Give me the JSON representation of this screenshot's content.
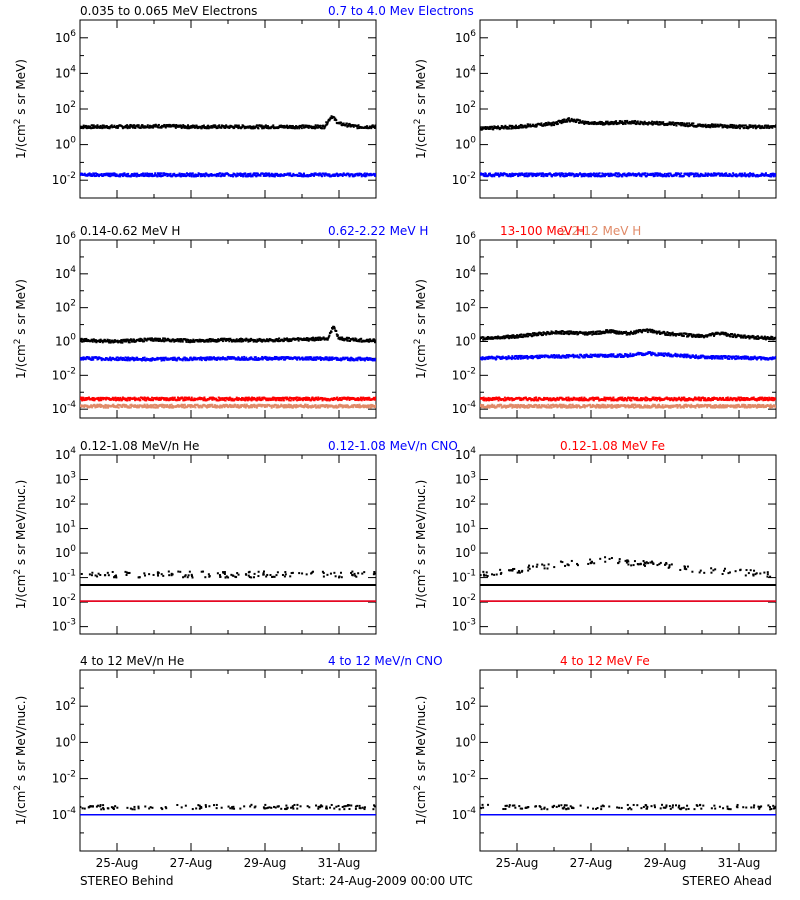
{
  "colors": {
    "black": "#000000",
    "blue": "#0000ff",
    "tan": "#e08a68",
    "red": "#ff0000"
  },
  "footer": {
    "left": "STEREO Behind",
    "center": "Start: 24-Aug-2009 00:00 UTC",
    "right": "STEREO Ahead"
  },
  "chart_data": [
    {
      "type": "scatter",
      "row": 1,
      "spacecraft": "STEREO Behind",
      "legend": [
        {
          "text": "0.035 to 0.065 MeV Electrons",
          "color": "#000000"
        },
        {
          "text": "0.7 to 4.0 Mev Electrons",
          "color": "#0000ff"
        }
      ],
      "ylabel": "1/(cm2 s sr MeV)",
      "yscale": "log",
      "ylim": [
        0.001,
        10000000
      ],
      "yticks": [
        {
          "v": 0.01,
          "label": "10^-2"
        },
        {
          "v": 1,
          "label": "10^0"
        },
        {
          "v": 100,
          "label": "10^2"
        },
        {
          "v": 10000,
          "label": "10^4"
        },
        {
          "v": 1000000,
          "label": "10^6"
        }
      ],
      "xlim": [
        0,
        8
      ],
      "x_units": "days since 24-Aug-2009 00:00 UTC",
      "x_ticks": [
        "25-Aug",
        "27-Aug",
        "29-Aug",
        "31-Aug"
      ],
      "series": [
        {
          "name": "0.035 to 0.065 MeV Electrons",
          "color": "#000000",
          "x": [
            0,
            1,
            2,
            3,
            4,
            5,
            6,
            6.6,
            6.8,
            7,
            7.5,
            8
          ],
          "y": [
            10,
            10,
            11,
            10,
            10,
            10,
            10,
            10,
            40,
            15,
            10,
            10
          ]
        },
        {
          "name": "0.7 to 4.0 Mev Electrons",
          "color": "#0000ff",
          "x": [
            0,
            2,
            4,
            6,
            8
          ],
          "y": [
            0.02,
            0.02,
            0.02,
            0.02,
            0.02
          ]
        }
      ]
    },
    {
      "type": "scatter",
      "row": 1,
      "spacecraft": "STEREO Ahead",
      "ylabel": "1/(cm2 s sr MeV)",
      "yscale": "log",
      "ylim": [
        0.001,
        10000000
      ],
      "yticks": [
        {
          "v": 0.01,
          "label": "10^-2"
        },
        {
          "v": 1,
          "label": "10^0"
        },
        {
          "v": 100,
          "label": "10^2"
        },
        {
          "v": 10000,
          "label": "10^4"
        },
        {
          "v": 1000000,
          "label": "10^6"
        }
      ],
      "xlim": [
        0,
        8
      ],
      "x_units": "days since 24-Aug-2009 00:00 UTC",
      "x_ticks": [
        "25-Aug",
        "27-Aug",
        "29-Aug",
        "31-Aug"
      ],
      "series": [
        {
          "name": "0.035 to 0.065 MeV Electrons",
          "color": "#000000",
          "x": [
            0,
            1,
            2,
            2.4,
            3,
            4,
            5,
            6,
            7,
            8
          ],
          "y": [
            8,
            10,
            15,
            25,
            15,
            18,
            15,
            12,
            10,
            10
          ]
        },
        {
          "name": "0.7 to 4.0 Mev Electrons",
          "color": "#0000ff",
          "x": [
            0,
            2,
            4,
            6,
            8
          ],
          "y": [
            0.02,
            0.02,
            0.02,
            0.02,
            0.02
          ]
        }
      ]
    },
    {
      "type": "scatter",
      "row": 2,
      "spacecraft": "STEREO Behind",
      "legend": [
        {
          "text": "0.14-0.62 MeV H",
          "color": "#000000"
        },
        {
          "text": "0.62-2.22 MeV H",
          "color": "#0000ff"
        },
        {
          "text": "2.2-12 MeV H",
          "color": "#e08a68"
        },
        {
          "text": "13-100 MeV H",
          "color": "#ff0000"
        }
      ],
      "ylabel": "1/(cm2 s sr MeV)",
      "yscale": "log",
      "ylim": [
        3e-05,
        1000000
      ],
      "yticks": [
        {
          "v": 0.0001,
          "label": "10^-4"
        },
        {
          "v": 0.01,
          "label": "10^-2"
        },
        {
          "v": 1,
          "label": "10^0"
        },
        {
          "v": 100,
          "label": "10^2"
        },
        {
          "v": 10000,
          "label": "10^4"
        },
        {
          "v": 1000000,
          "label": "10^6"
        }
      ],
      "xlim": [
        0,
        8
      ],
      "x_units": "days since 24-Aug-2009 00:00 UTC",
      "x_ticks": [
        "25-Aug",
        "27-Aug",
        "29-Aug",
        "31-Aug"
      ],
      "series": [
        {
          "name": "0.14-0.62 MeV H",
          "color": "#000000",
          "x": [
            0,
            1,
            2,
            3,
            4,
            5,
            6,
            6.7,
            6.85,
            7,
            7.5,
            8
          ],
          "y": [
            1.2,
            1,
            1.3,
            1.1,
            1.2,
            1.2,
            1.3,
            1.5,
            8,
            1.5,
            1.2,
            1.1
          ]
        },
        {
          "name": "0.62-2.22 MeV H",
          "color": "#0000ff",
          "x": [
            0,
            2,
            4,
            6,
            8
          ],
          "y": [
            0.1,
            0.09,
            0.1,
            0.1,
            0.09
          ]
        },
        {
          "name": "2.2-12 MeV H",
          "color": "#e08a68",
          "x": [
            0,
            2,
            4,
            6,
            8
          ],
          "y": [
            0.00015,
            0.00015,
            0.00015,
            0.00015,
            0.00015
          ]
        },
        {
          "name": "13-100 MeV H",
          "color": "#ff0000",
          "x": [
            0,
            2,
            4,
            6,
            8
          ],
          "y": [
            0.0004,
            0.0004,
            0.0004,
            0.0004,
            0.0004
          ]
        }
      ]
    },
    {
      "type": "scatter",
      "row": 2,
      "spacecraft": "STEREO Ahead",
      "ylabel": "1/(cm2 s sr MeV)",
      "yscale": "log",
      "ylim": [
        3e-05,
        1000000
      ],
      "yticks": [
        {
          "v": 0.0001,
          "label": "10^-4"
        },
        {
          "v": 0.01,
          "label": "10^-2"
        },
        {
          "v": 1,
          "label": "10^0"
        },
        {
          "v": 100,
          "label": "10^2"
        },
        {
          "v": 10000,
          "label": "10^4"
        },
        {
          "v": 1000000,
          "label": "10^6"
        }
      ],
      "xlim": [
        0,
        8
      ],
      "x_units": "days since 24-Aug-2009 00:00 UTC",
      "x_ticks": [
        "25-Aug",
        "27-Aug",
        "29-Aug",
        "31-Aug"
      ],
      "series": [
        {
          "name": "0.14-0.62 MeV H",
          "color": "#000000",
          "x": [
            0,
            1,
            2,
            3,
            3.5,
            4,
            4.5,
            5,
            5.5,
            6,
            6.5,
            7,
            8
          ],
          "y": [
            1.5,
            2,
            3.5,
            3,
            4,
            3,
            4.5,
            3,
            2.5,
            2,
            3,
            2,
            1.5
          ]
        },
        {
          "name": "0.62-2.22 MeV H",
          "color": "#0000ff",
          "x": [
            0,
            2,
            4,
            4.5,
            6,
            8
          ],
          "y": [
            0.1,
            0.13,
            0.15,
            0.2,
            0.12,
            0.1
          ]
        },
        {
          "name": "2.2-12 MeV H",
          "color": "#e08a68",
          "x": [
            0,
            2,
            4,
            6,
            8
          ],
          "y": [
            0.00015,
            0.00015,
            0.00015,
            0.00015,
            0.00015
          ]
        },
        {
          "name": "13-100 MeV H",
          "color": "#ff0000",
          "x": [
            0,
            2,
            4,
            6,
            8
          ],
          "y": [
            0.0004,
            0.0004,
            0.0004,
            0.0004,
            0.0004
          ]
        }
      ]
    },
    {
      "type": "scatter",
      "row": 3,
      "spacecraft": "STEREO Behind",
      "legend": [
        {
          "text": "0.12-1.08 MeV/n He",
          "color": "#000000"
        },
        {
          "text": "0.12-1.08 MeV/n CNO",
          "color": "#0000ff"
        },
        {
          "text": "0.12-1.08 MeV Fe",
          "color": "#ff0000"
        }
      ],
      "ylabel": "1/(cm2 s sr MeV/nuc.)",
      "yscale": "log",
      "ylim": [
        0.0005,
        10000
      ],
      "yticks": [
        {
          "v": 0.001,
          "label": "10^-3"
        },
        {
          "v": 0.01,
          "label": "10^-2"
        },
        {
          "v": 0.1,
          "label": "10^-1"
        },
        {
          "v": 1,
          "label": "10^0"
        },
        {
          "v": 10,
          "label": "10^1"
        },
        {
          "v": 100,
          "label": "10^2"
        },
        {
          "v": 1000,
          "label": "10^3"
        },
        {
          "v": 10000,
          "label": "10^4"
        }
      ],
      "xlim": [
        0,
        8
      ],
      "x_units": "days since 24-Aug-2009 00:00 UTC",
      "x_ticks": [
        "25-Aug",
        "27-Aug",
        "29-Aug",
        "31-Aug"
      ],
      "series": [
        {
          "name": "0.12-1.08 MeV/n He",
          "color": "#000000",
          "x": [
            0,
            2,
            4,
            6,
            8
          ],
          "y": [
            0.1,
            0.1,
            0.1,
            0.1,
            0.1
          ]
        },
        {
          "name": "0.12-1.08 MeV/n He floor",
          "color": "#000000",
          "x": [
            0,
            8
          ],
          "y": [
            0.05,
            0.05
          ]
        },
        {
          "name": "0.12-1.08 MeV/n CNO",
          "color": "#0000ff",
          "x": [
            0,
            8
          ],
          "y": [
            0.011,
            0.011
          ]
        },
        {
          "name": "0.12-1.08 MeV Fe",
          "color": "#ff0000",
          "x": [
            0,
            8
          ],
          "y": [
            0.011,
            0.011
          ]
        }
      ]
    },
    {
      "type": "scatter",
      "row": 3,
      "spacecraft": "STEREO Ahead",
      "ylabel": "1/(cm2 s sr MeV/nuc.)",
      "yscale": "log",
      "ylim": [
        0.0005,
        10000
      ],
      "yticks": [
        {
          "v": 0.001,
          "label": "10^-3"
        },
        {
          "v": 0.01,
          "label": "10^-2"
        },
        {
          "v": 0.1,
          "label": "10^-1"
        },
        {
          "v": 1,
          "label": "10^0"
        },
        {
          "v": 10,
          "label": "10^1"
        },
        {
          "v": 100,
          "label": "10^2"
        },
        {
          "v": 1000,
          "label": "10^3"
        },
        {
          "v": 10000,
          "label": "10^4"
        }
      ],
      "xlim": [
        0,
        8
      ],
      "x_units": "days since 24-Aug-2009 00:00 UTC",
      "x_ticks": [
        "25-Aug",
        "27-Aug",
        "29-Aug",
        "31-Aug"
      ],
      "series": [
        {
          "name": "0.12-1.08 MeV/n He",
          "color": "#000000",
          "x": [
            0,
            1,
            2,
            3,
            3.5,
            4,
            5,
            6,
            7,
            8
          ],
          "y": [
            0.1,
            0.15,
            0.25,
            0.35,
            0.45,
            0.3,
            0.25,
            0.15,
            0.12,
            0.1
          ]
        },
        {
          "name": "0.12-1.08 MeV/n He floor",
          "color": "#000000",
          "x": [
            0,
            8
          ],
          "y": [
            0.05,
            0.05
          ]
        },
        {
          "name": "0.12-1.08 MeV/n CNO",
          "color": "#0000ff",
          "x": [
            0,
            8
          ],
          "y": [
            0.011,
            0.011
          ]
        },
        {
          "name": "0.12-1.08 MeV Fe",
          "color": "#ff0000",
          "x": [
            0,
            8
          ],
          "y": [
            0.011,
            0.011
          ]
        }
      ]
    },
    {
      "type": "scatter",
      "row": 4,
      "spacecraft": "STEREO Behind",
      "legend": [
        {
          "text": "4 to 12 MeV/n He",
          "color": "#000000"
        },
        {
          "text": "4 to 12 MeV/n CNO",
          "color": "#0000ff"
        },
        {
          "text": "4 to 12 MeV Fe",
          "color": "#ff0000"
        }
      ],
      "ylabel": "1/(cm2 s sr MeV/nuc.)",
      "yscale": "log",
      "ylim": [
        1e-06,
        10000
      ],
      "yticks": [
        {
          "v": 0.0001,
          "label": "10^-4"
        },
        {
          "v": 0.01,
          "label": "10^-2"
        },
        {
          "v": 1,
          "label": "10^0"
        },
        {
          "v": 100,
          "label": "10^2"
        }
      ],
      "xlim": [
        0,
        8
      ],
      "x_units": "days since 24-Aug-2009 00:00 UTC",
      "x_ticks": [
        "25-Aug",
        "27-Aug",
        "29-Aug",
        "31-Aug"
      ],
      "series": [
        {
          "name": "4 to 12 MeV/n He",
          "color": "#000000",
          "x": [
            0.5,
            1,
            2,
            3,
            4,
            5,
            6,
            7
          ],
          "y": [
            0.0002,
            0.0002,
            0.0002,
            0.0002,
            0.0002,
            0.0002,
            0.0002,
            0.0002
          ]
        },
        {
          "name": "4 to 12 MeV/n CNO",
          "color": "#0000ff",
          "x": [
            0,
            8
          ],
          "y": [
            0.0001,
            0.0001
          ]
        }
      ]
    },
    {
      "type": "scatter",
      "row": 4,
      "spacecraft": "STEREO Ahead",
      "ylabel": "1/(cm2 s sr MeV/nuc.)",
      "yscale": "log",
      "ylim": [
        1e-06,
        10000
      ],
      "yticks": [
        {
          "v": 0.0001,
          "label": "10^-4"
        },
        {
          "v": 0.01,
          "label": "10^-2"
        },
        {
          "v": 1,
          "label": "10^0"
        },
        {
          "v": 100,
          "label": "10^2"
        }
      ],
      "xlim": [
        0,
        8
      ],
      "x_units": "days since 24-Aug-2009 00:00 UTC",
      "x_ticks": [
        "25-Aug",
        "27-Aug",
        "29-Aug",
        "31-Aug"
      ],
      "series": [
        {
          "name": "4 to 12 MeV/n He",
          "color": "#000000",
          "x": [
            0.5,
            1,
            2,
            3,
            4,
            5,
            6,
            7
          ],
          "y": [
            0.0002,
            0.0002,
            0.0002,
            0.0002,
            0.0002,
            0.0002,
            0.0002,
            0.0002
          ]
        },
        {
          "name": "4 to 12 MeV/n CNO",
          "color": "#0000ff",
          "x": [
            0,
            8
          ],
          "y": [
            0.0001,
            0.0001
          ]
        }
      ]
    }
  ]
}
